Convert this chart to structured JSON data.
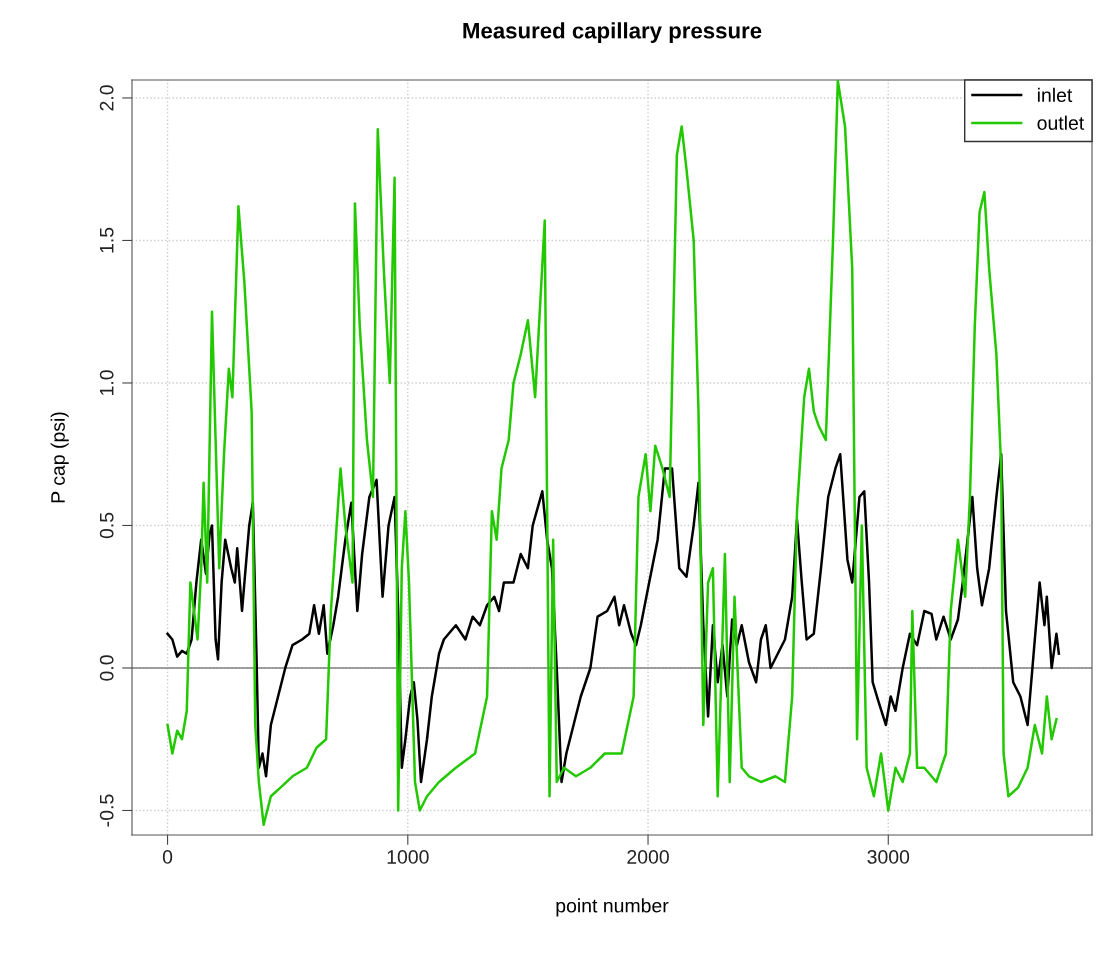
{
  "chart_data": {
    "type": "line",
    "title": "Measured capillary pressure",
    "xlabel": "point number",
    "ylabel": "P cap (psi)",
    "xlim": [
      -148,
      3848
    ],
    "ylim": [
      -0.586,
      2.063
    ],
    "xticks": [
      0,
      1000,
      2000,
      3000
    ],
    "yticks": [
      {
        "value": -0.5,
        "label": "-0.5"
      },
      {
        "value": 0,
        "label": "0.0"
      },
      0.5,
      {
        "value": 1,
        "label": "1.0"
      },
      1.5,
      {
        "value": 2,
        "label": "2.0"
      }
    ],
    "grid": true,
    "legend": "top right",
    "line_style": "solid",
    "marker": "none",
    "ref_lines": [
      {
        "axis": "y",
        "value": 0,
        "color": "#808080"
      }
    ],
    "series": [
      {
        "name": "inlet",
        "color": "#000000",
        "x": [
          0,
          20,
          40,
          60,
          80,
          100,
          120,
          140,
          160,
          175,
          185,
          200,
          210,
          225,
          240,
          265,
          280,
          290,
          310,
          340,
          355,
          370,
          380,
          395,
          410,
          430,
          460,
          490,
          520,
          560,
          590,
          610,
          630,
          650,
          665,
          690,
          710,
          740,
          765,
          790,
          810,
          840,
          870,
          895,
          920,
          945,
          960,
          975,
          990,
          1010,
          1025,
          1040,
          1055,
          1080,
          1100,
          1130,
          1150,
          1200,
          1240,
          1270,
          1300,
          1330,
          1360,
          1380,
          1400,
          1440,
          1470,
          1500,
          1520,
          1560,
          1580,
          1600,
          1620,
          1640,
          1660,
          1690,
          1720,
          1760,
          1790,
          1830,
          1860,
          1880,
          1900,
          1930,
          1950,
          1970,
          2000,
          2040,
          2070,
          2100,
          2130,
          2160,
          2190,
          2210,
          2230,
          2250,
          2270,
          2290,
          2310,
          2330,
          2350,
          2370,
          2390,
          2420,
          2450,
          2470,
          2490,
          2510,
          2540,
          2570,
          2600,
          2620,
          2640,
          2660,
          2690,
          2720,
          2750,
          2780,
          2800,
          2830,
          2850,
          2880,
          2900,
          2920,
          2935,
          2960,
          2990,
          3010,
          3030,
          3060,
          3090,
          3120,
          3150,
          3180,
          3200,
          3230,
          3260,
          3290,
          3310,
          3330,
          3350,
          3370,
          3390,
          3420,
          3450,
          3470,
          3490,
          3520,
          3550,
          3580,
          3600,
          3630,
          3650,
          3660,
          3680,
          3700,
          3710
        ],
        "values": [
          0.12,
          0.1,
          0.04,
          0.06,
          0.05,
          0.1,
          0.3,
          0.45,
          0.33,
          0.47,
          0.5,
          0.1,
          0.03,
          0.3,
          0.45,
          0.35,
          0.3,
          0.42,
          0.2,
          0.5,
          0.58,
          0.05,
          -0.35,
          -0.3,
          -0.38,
          -0.2,
          -0.1,
          0.0,
          0.08,
          0.1,
          0.12,
          0.22,
          0.12,
          0.22,
          0.05,
          0.15,
          0.25,
          0.45,
          0.58,
          0.2,
          0.4,
          0.6,
          0.66,
          0.25,
          0.5,
          0.6,
          0.2,
          -0.35,
          -0.25,
          -0.1,
          -0.05,
          -0.18,
          -0.4,
          -0.25,
          -0.1,
          0.05,
          0.1,
          0.15,
          0.1,
          0.18,
          0.15,
          0.22,
          0.25,
          0.2,
          0.3,
          0.3,
          0.4,
          0.35,
          0.5,
          0.62,
          0.45,
          0.35,
          0.0,
          -0.4,
          -0.3,
          -0.2,
          -0.1,
          0.0,
          0.18,
          0.2,
          0.25,
          0.15,
          0.22,
          0.12,
          0.08,
          0.15,
          0.28,
          0.45,
          0.7,
          0.7,
          0.35,
          0.32,
          0.5,
          0.65,
          0.15,
          -0.17,
          0.15,
          -0.05,
          0.08,
          -0.1,
          0.17,
          0.08,
          0.15,
          0.02,
          -0.05,
          0.1,
          0.15,
          0.0,
          0.05,
          0.1,
          0.25,
          0.52,
          0.3,
          0.1,
          0.12,
          0.35,
          0.6,
          0.7,
          0.75,
          0.38,
          0.3,
          0.6,
          0.62,
          0.3,
          -0.05,
          -0.12,
          -0.2,
          -0.1,
          -0.15,
          0.0,
          0.12,
          0.08,
          0.2,
          0.19,
          0.1,
          0.18,
          0.1,
          0.17,
          0.3,
          0.45,
          0.6,
          0.35,
          0.22,
          0.35,
          0.6,
          0.75,
          0.2,
          -0.05,
          -0.1,
          -0.2,
          0.0,
          0.3,
          0.15,
          0.25,
          0.0,
          0.12,
          0.05
        ]
      },
      {
        "name": "outlet",
        "color": "#22c800",
        "x": [
          0,
          20,
          40,
          60,
          80,
          95,
          110,
          125,
          140,
          150,
          165,
          185,
          200,
          215,
          235,
          255,
          270,
          295,
          320,
          350,
          365,
          380,
          400,
          430,
          470,
          520,
          580,
          620,
          660,
          680,
          700,
          720,
          740,
          770,
          780,
          800,
          830,
          855,
          875,
          900,
          925,
          945,
          960,
          975,
          990,
          1005,
          1030,
          1050,
          1080,
          1130,
          1200,
          1280,
          1330,
          1350,
          1370,
          1390,
          1420,
          1440,
          1470,
          1500,
          1530,
          1570,
          1590,
          1605,
          1620,
          1650,
          1700,
          1760,
          1820,
          1890,
          1940,
          1960,
          1990,
          2010,
          2030,
          2060,
          2090,
          2120,
          2140,
          2160,
          2190,
          2210,
          2230,
          2250,
          2270,
          2290,
          2320,
          2340,
          2360,
          2390,
          2420,
          2470,
          2530,
          2570,
          2600,
          2620,
          2650,
          2670,
          2690,
          2710,
          2740,
          2770,
          2790,
          2820,
          2850,
          2870,
          2890,
          2910,
          2940,
          2970,
          3000,
          3030,
          3060,
          3090,
          3100,
          3120,
          3150,
          3200,
          3240,
          3260,
          3290,
          3320,
          3340,
          3360,
          3380,
          3400,
          3420,
          3450,
          3470,
          3480,
          3500,
          3540,
          3580,
          3610,
          3640,
          3660,
          3680,
          3700
        ],
        "values": [
          -0.2,
          -0.3,
          -0.22,
          -0.25,
          -0.15,
          0.3,
          0.2,
          0.1,
          0.35,
          0.65,
          0.3,
          1.25,
          0.8,
          0.35,
          0.75,
          1.05,
          0.95,
          1.62,
          1.35,
          0.9,
          -0.2,
          -0.4,
          -0.55,
          -0.45,
          -0.42,
          -0.38,
          -0.35,
          -0.28,
          -0.25,
          0.2,
          0.45,
          0.7,
          0.5,
          0.3,
          1.63,
          1.2,
          0.8,
          0.6,
          1.89,
          1.4,
          1.0,
          1.72,
          -0.5,
          0.35,
          0.55,
          0.3,
          -0.4,
          -0.5,
          -0.45,
          -0.4,
          -0.35,
          -0.3,
          -0.1,
          0.55,
          0.45,
          0.7,
          0.8,
          1.0,
          1.1,
          1.22,
          0.95,
          1.57,
          -0.45,
          0.45,
          -0.4,
          -0.35,
          -0.38,
          -0.35,
          -0.3,
          -0.3,
          -0.1,
          0.6,
          0.75,
          0.55,
          0.78,
          0.7,
          0.6,
          1.8,
          1.9,
          1.75,
          1.5,
          0.9,
          -0.2,
          0.3,
          0.35,
          -0.45,
          0.4,
          -0.4,
          0.25,
          -0.35,
          -0.38,
          -0.4,
          -0.38,
          -0.4,
          -0.1,
          0.55,
          0.95,
          1.05,
          0.9,
          0.85,
          0.8,
          1.5,
          2.06,
          1.9,
          1.4,
          -0.25,
          0.5,
          -0.35,
          -0.45,
          -0.3,
          -0.5,
          -0.35,
          -0.4,
          -0.3,
          0.2,
          -0.35,
          -0.35,
          -0.4,
          -0.3,
          0.2,
          0.45,
          0.25,
          0.6,
          1.2,
          1.6,
          1.67,
          1.4,
          1.1,
          0.7,
          -0.3,
          -0.45,
          -0.42,
          -0.35,
          -0.2,
          -0.3,
          -0.1,
          -0.25,
          -0.18
        ]
      }
    ]
  }
}
